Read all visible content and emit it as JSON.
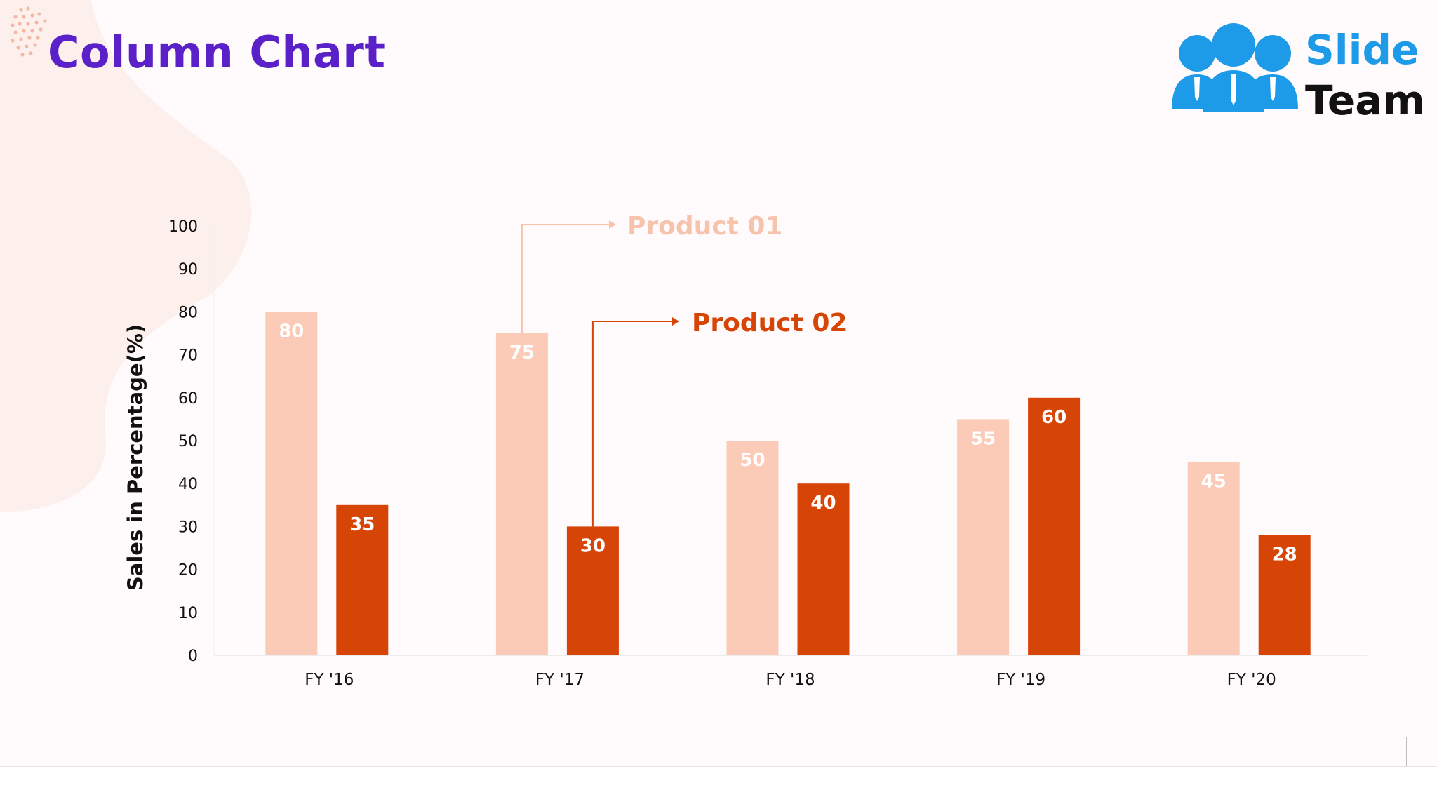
{
  "slide": {
    "title": "Column Chart",
    "logo": {
      "word_1": "Slide",
      "word_2": "Team"
    }
  },
  "colors": {
    "product_01": "#fccbb8",
    "product_02": "#d64406",
    "product_01_label": "#f7c3ad",
    "title": "#5b21c9",
    "logo_blue": "#1e9be8"
  },
  "chart_data": {
    "type": "bar",
    "title": "",
    "xlabel": "",
    "ylabel": "Sales in Percentage(%)",
    "ylim": [
      0,
      100
    ],
    "yticks": [
      0,
      10,
      20,
      30,
      40,
      50,
      60,
      70,
      80,
      90,
      100
    ],
    "categories": [
      "FY '16",
      "FY '17",
      "FY '18",
      "FY '19",
      "FY '20"
    ],
    "series": [
      {
        "name": "Product 01",
        "values": [
          80,
          75,
          50,
          55,
          45
        ]
      },
      {
        "name": "Product 02",
        "values": [
          35,
          30,
          40,
          60,
          28
        ]
      }
    ],
    "grid": false,
    "legend": "callout"
  }
}
